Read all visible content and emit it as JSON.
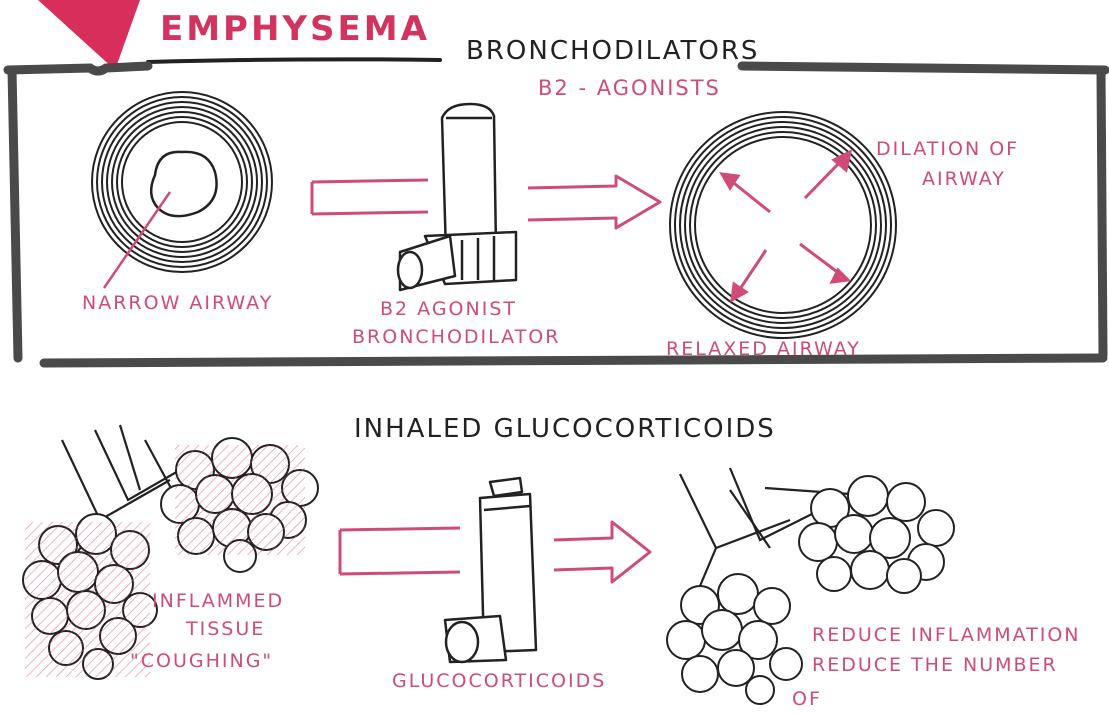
{
  "title": "EMPHYSEMA",
  "section1": {
    "heading": "BRONCHODILATORS",
    "subheading": "B2 - AGONISTS",
    "narrow_label": "NARROW AIRWAY",
    "inhaler_label": [
      "B2 AGONIST",
      "BRONCHODILATOR"
    ],
    "relaxed_label": "RELAXED AIRWAY",
    "dilation_label": [
      "DILATION OF",
      "AIRWAY"
    ]
  },
  "section2": {
    "heading": "INHALED GLUCOCORTICOIDS",
    "inflamed_label": [
      "INFLAMMED",
      "TISSUE"
    ],
    "coughing_label": "\"COUGHING\"",
    "inhaler_label": "GLUCOCORTICOIDS",
    "effect_label": [
      "REDUCE INFLAMMATION",
      "REDUCE THE NUMBER",
      "OF"
    ]
  },
  "colors": {
    "ink": "#222222",
    "accent": "#cf4b78",
    "frame": "#4a4a4a",
    "title": "#d2345f"
  }
}
